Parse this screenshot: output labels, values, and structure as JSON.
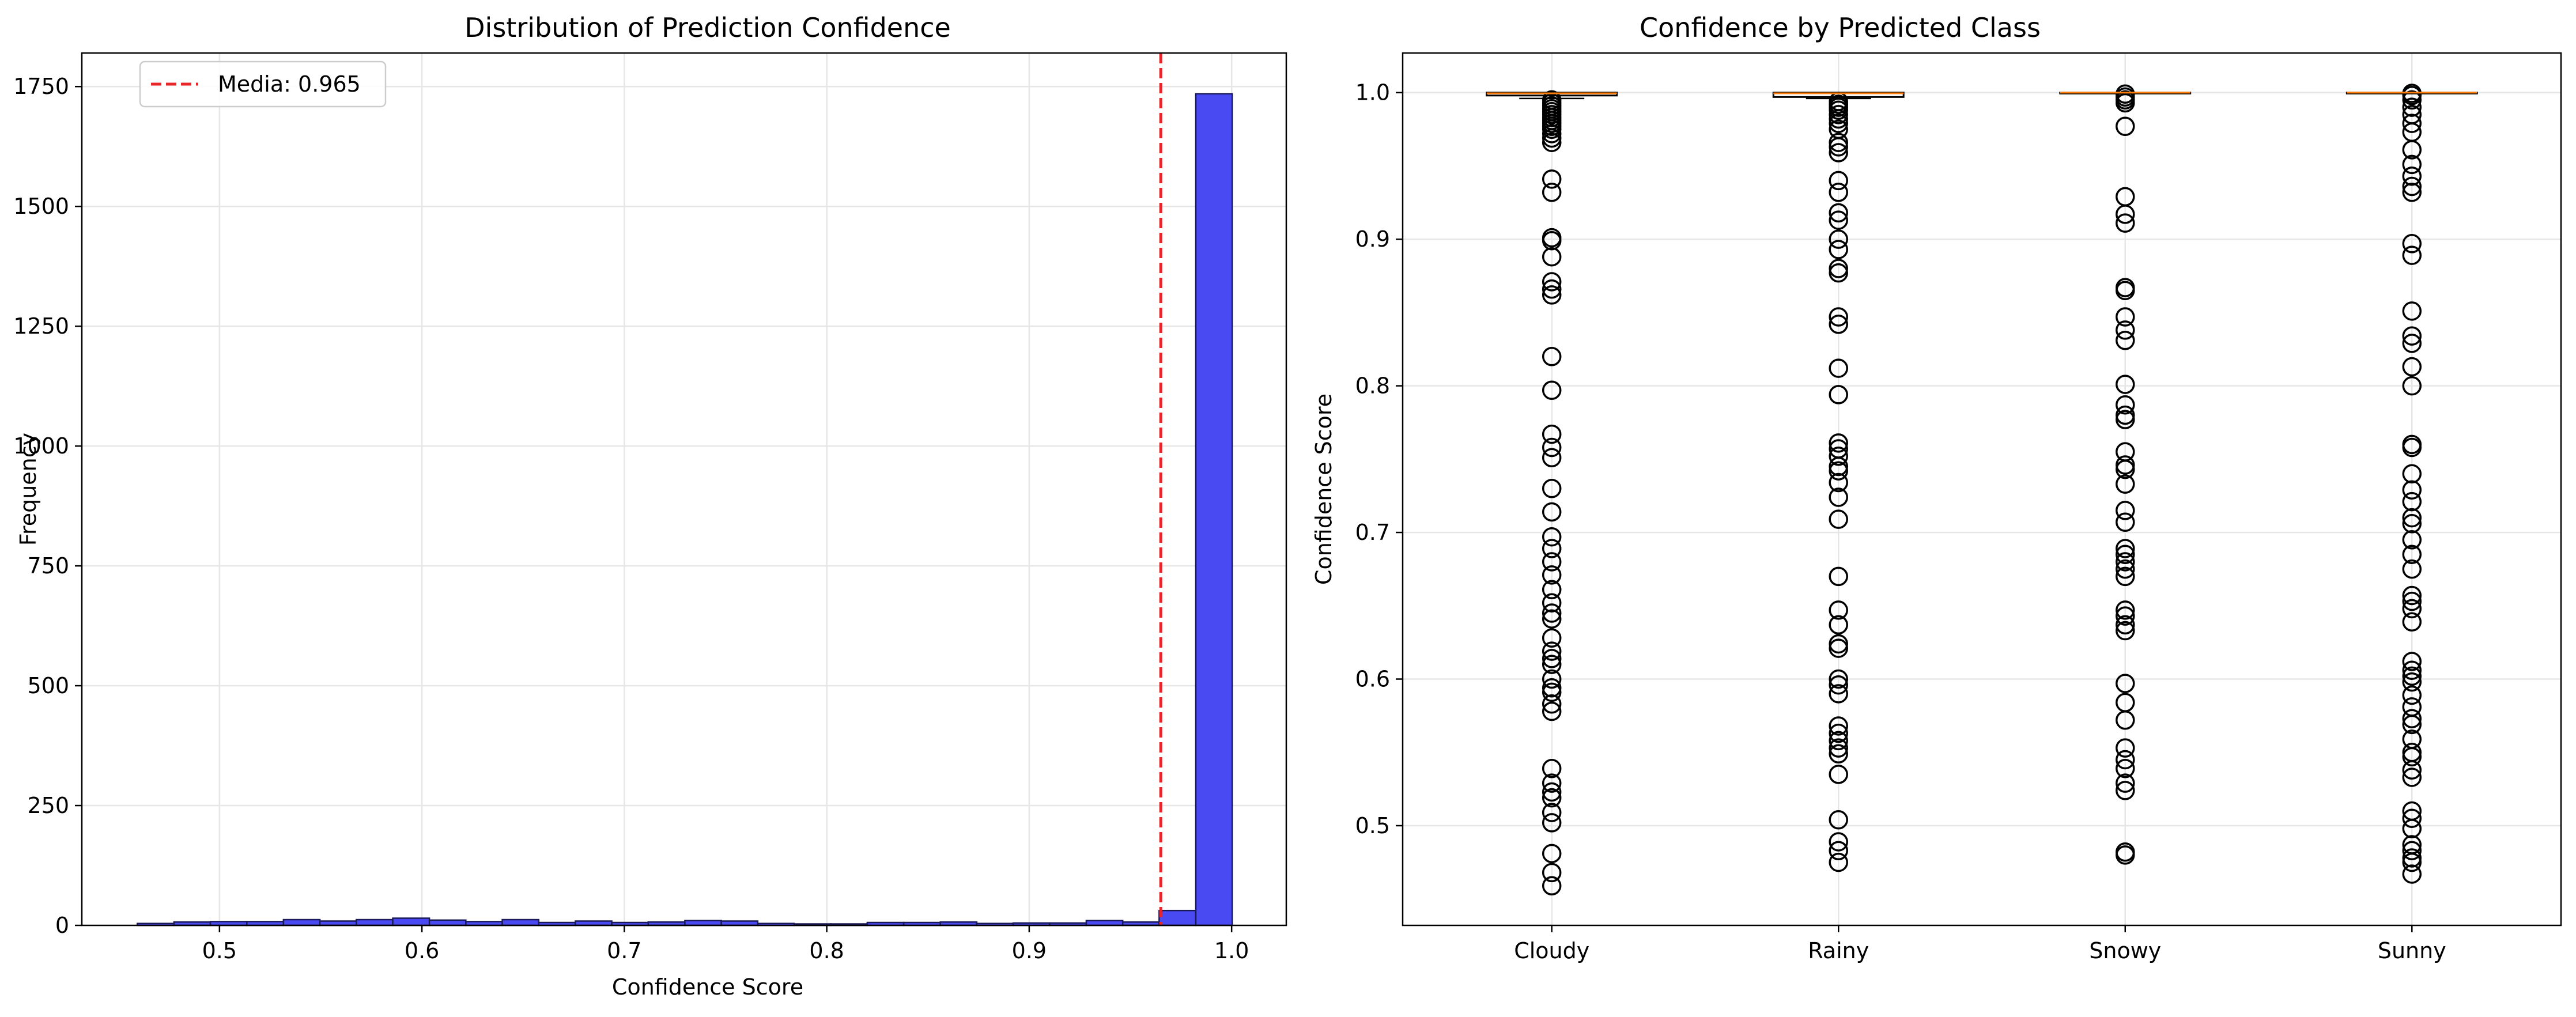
{
  "chart_data": [
    {
      "type": "bar",
      "subtype": "histogram",
      "title": "Distribution of Prediction Confidence",
      "xlabel": "Confidence Score",
      "ylabel": "Frequency",
      "xlim": [
        0.432,
        1.027
      ],
      "ylim": [
        0,
        1820
      ],
      "xticks": [
        0.5,
        0.6,
        0.7,
        0.8,
        0.9,
        1.0
      ],
      "xtick_labels": [
        "0.5",
        "0.6",
        "0.7",
        "0.8",
        "0.9",
        "1.0"
      ],
      "yticks": [
        0,
        250,
        500,
        750,
        1000,
        1250,
        1500,
        1750
      ],
      "ytick_labels": [
        "0",
        "250",
        "500",
        "750",
        "1000",
        "1250",
        "1500",
        "1750"
      ],
      "grid": true,
      "bar_color": "#4a4af2",
      "bar_edge": "#1a1a5a",
      "bins": [
        {
          "x0": 0.4594,
          "x1": 0.4775,
          "count": 4
        },
        {
          "x0": 0.4775,
          "x1": 0.4955,
          "count": 7
        },
        {
          "x0": 0.4955,
          "x1": 0.5135,
          "count": 8
        },
        {
          "x0": 0.5135,
          "x1": 0.5316,
          "count": 8
        },
        {
          "x0": 0.5316,
          "x1": 0.5496,
          "count": 12
        },
        {
          "x0": 0.5496,
          "x1": 0.5676,
          "count": 9
        },
        {
          "x0": 0.5676,
          "x1": 0.5856,
          "count": 12
        },
        {
          "x0": 0.5856,
          "x1": 0.6037,
          "count": 15
        },
        {
          "x0": 0.6037,
          "x1": 0.6217,
          "count": 11
        },
        {
          "x0": 0.6217,
          "x1": 0.6397,
          "count": 8
        },
        {
          "x0": 0.6397,
          "x1": 0.6577,
          "count": 12
        },
        {
          "x0": 0.6577,
          "x1": 0.6758,
          "count": 6
        },
        {
          "x0": 0.6758,
          "x1": 0.6938,
          "count": 9
        },
        {
          "x0": 0.6938,
          "x1": 0.7118,
          "count": 6
        },
        {
          "x0": 0.7118,
          "x1": 0.7299,
          "count": 7
        },
        {
          "x0": 0.7299,
          "x1": 0.7479,
          "count": 10
        },
        {
          "x0": 0.7479,
          "x1": 0.7659,
          "count": 9
        },
        {
          "x0": 0.7659,
          "x1": 0.7839,
          "count": 4
        },
        {
          "x0": 0.7839,
          "x1": 0.802,
          "count": 3
        },
        {
          "x0": 0.802,
          "x1": 0.82,
          "count": 3
        },
        {
          "x0": 0.82,
          "x1": 0.838,
          "count": 6
        },
        {
          "x0": 0.838,
          "x1": 0.8561,
          "count": 6
        },
        {
          "x0": 0.8561,
          "x1": 0.8741,
          "count": 7
        },
        {
          "x0": 0.8741,
          "x1": 0.8921,
          "count": 4
        },
        {
          "x0": 0.8921,
          "x1": 0.9101,
          "count": 5
        },
        {
          "x0": 0.9101,
          "x1": 0.9282,
          "count": 5
        },
        {
          "x0": 0.9282,
          "x1": 0.9462,
          "count": 10
        },
        {
          "x0": 0.9462,
          "x1": 0.9642,
          "count": 7
        },
        {
          "x0": 0.9642,
          "x1": 0.9823,
          "count": 31
        },
        {
          "x0": 0.9823,
          "x1": 1.0003,
          "count": 1735
        }
      ],
      "vline": {
        "x": 0.965,
        "color": "#e8262a",
        "label": "Media: 0.965"
      },
      "legend": {
        "position": "top-left",
        "entries": [
          "Media: 0.965"
        ]
      }
    },
    {
      "type": "box",
      "title": "Confidence by Predicted Class",
      "xlabel": "",
      "ylabel": "Confidence Score",
      "ylim": [
        0.432,
        1.027
      ],
      "yticks": [
        0.5,
        0.6,
        0.7,
        0.8,
        0.9,
        1.0
      ],
      "ytick_labels": [
        "0.5",
        "0.6",
        "0.7",
        "0.8",
        "0.9",
        "1.0"
      ],
      "grid": true,
      "median_color": "#ff7f0e",
      "categories": [
        "Cloudy",
        "Rainy",
        "Snowy",
        "Sunny"
      ],
      "boxes": [
        {
          "category": "Cloudy",
          "q1": 0.998,
          "median": 0.9995,
          "q3": 1.0,
          "whisker_low": 0.996,
          "whisker_high": 1.0,
          "outliers": [
            0.995,
            0.993,
            0.991,
            0.989,
            0.987,
            0.985,
            0.983,
            0.981,
            0.979,
            0.977,
            0.975,
            0.972,
            0.969,
            0.966,
            0.941,
            0.932,
            0.901,
            0.899,
            0.888,
            0.871,
            0.866,
            0.862,
            0.82,
            0.797,
            0.767,
            0.758,
            0.751,
            0.73,
            0.714,
            0.697,
            0.689,
            0.68,
            0.671,
            0.661,
            0.652,
            0.645,
            0.641,
            0.628,
            0.619,
            0.614,
            0.61,
            0.6,
            0.594,
            0.591,
            0.583,
            0.578,
            0.539,
            0.529,
            0.523,
            0.519,
            0.509,
            0.502,
            0.481,
            0.468,
            0.459
          ]
        },
        {
          "category": "Rainy",
          "q1": 0.997,
          "median": 0.9995,
          "q3": 1.0,
          "whisker_low": 0.996,
          "whisker_high": 1.0,
          "outliers": [
            0.994,
            0.992,
            0.99,
            0.988,
            0.985,
            0.982,
            0.979,
            0.975,
            0.966,
            0.963,
            0.959,
            0.94,
            0.932,
            0.918,
            0.913,
            0.9,
            0.893,
            0.88,
            0.877,
            0.847,
            0.842,
            0.812,
            0.794,
            0.761,
            0.757,
            0.752,
            0.745,
            0.742,
            0.734,
            0.724,
            0.709,
            0.67,
            0.647,
            0.637,
            0.624,
            0.621,
            0.6,
            0.596,
            0.59,
            0.568,
            0.563,
            0.558,
            0.553,
            0.549,
            0.535,
            0.504,
            0.489,
            0.483,
            0.475
          ]
        },
        {
          "category": "Snowy",
          "q1": 1.0,
          "median": 1.0,
          "q3": 1.0,
          "whisker_low": 1.0,
          "whisker_high": 1.0,
          "outliers": [
            0.999,
            0.997,
            0.995,
            0.993,
            0.977,
            0.929,
            0.917,
            0.911,
            0.867,
            0.865,
            0.847,
            0.838,
            0.831,
            0.801,
            0.787,
            0.78,
            0.777,
            0.755,
            0.746,
            0.743,
            0.733,
            0.715,
            0.707,
            0.689,
            0.685,
            0.68,
            0.675,
            0.67,
            0.647,
            0.643,
            0.637,
            0.633,
            0.597,
            0.584,
            0.572,
            0.553,
            0.545,
            0.539,
            0.529,
            0.524,
            0.482,
            0.48
          ]
        },
        {
          "category": "Sunny",
          "q1": 1.0,
          "median": 1.0,
          "q3": 1.0,
          "whisker_low": 1.0,
          "whisker_high": 1.0,
          "outliers": [
            0.9995,
            0.998,
            0.995,
            0.99,
            0.985,
            0.979,
            0.973,
            0.961,
            0.951,
            0.943,
            0.936,
            0.932,
            0.897,
            0.889,
            0.851,
            0.834,
            0.829,
            0.813,
            0.8,
            0.76,
            0.758,
            0.74,
            0.729,
            0.721,
            0.71,
            0.706,
            0.695,
            0.685,
            0.675,
            0.657,
            0.653,
            0.648,
            0.639,
            0.612,
            0.606,
            0.602,
            0.598,
            0.589,
            0.581,
            0.573,
            0.569,
            0.559,
            0.55,
            0.547,
            0.538,
            0.533,
            0.51,
            0.505,
            0.498,
            0.487,
            0.483,
            0.478,
            0.475,
            0.467
          ]
        }
      ]
    }
  ]
}
